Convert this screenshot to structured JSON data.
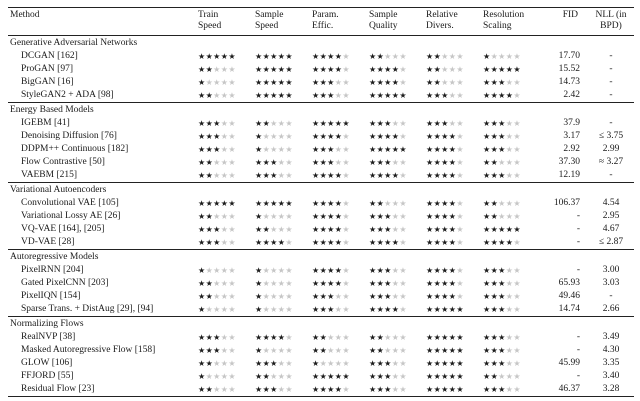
{
  "colors": {
    "star_filled": "#1c1c1c",
    "star_empty": "#c6c6c6",
    "rule": "#222222"
  },
  "rating_scale": 5,
  "header": {
    "method": "Method",
    "star_columns": [
      [
        "Train",
        "Speed"
      ],
      [
        "Sample",
        "Speed"
      ],
      [
        "Param.",
        "Effic."
      ],
      [
        "Sample",
        "Quality"
      ],
      [
        "Relative",
        "Divers."
      ],
      [
        "Resolution",
        "Scaling"
      ]
    ],
    "fid": "FID",
    "nll": [
      "NLL (in",
      "BPD)"
    ]
  },
  "sections": [
    {
      "title": "Generative Adversarial Networks",
      "rows": [
        {
          "method": "DCGAN [162]",
          "ratings": [
            5,
            5,
            4,
            2,
            2,
            1
          ],
          "fid": "17.70",
          "nll": "-"
        },
        {
          "method": "ProGAN [97]",
          "ratings": [
            2,
            5,
            4,
            4,
            2,
            5
          ],
          "fid": "15.52",
          "nll": "-"
        },
        {
          "method": "BigGAN [16]",
          "ratings": [
            1,
            5,
            3,
            4,
            2,
            3
          ],
          "fid": "14.73",
          "nll": "-"
        },
        {
          "method": "StyleGAN2 + ADA [98]",
          "ratings": [
            2,
            5,
            3,
            5,
            3,
            4
          ],
          "fid": "2.42",
          "nll": "-"
        }
      ]
    },
    {
      "title": "Energy Based Models",
      "rows": [
        {
          "method": "IGEBM [41]",
          "ratings": [
            3,
            2,
            5,
            3,
            3,
            3
          ],
          "fid": "37.9",
          "nll": "-"
        },
        {
          "method": "Denoising Diffusion [76]",
          "ratings": [
            3,
            1,
            4,
            4,
            4,
            3
          ],
          "fid": "3.17",
          "nll": "≤ 3.75"
        },
        {
          "method": "DDPM++ Continuous [182]",
          "ratings": [
            3,
            1,
            3,
            5,
            4,
            3
          ],
          "fid": "2.92",
          "nll": "2.99"
        },
        {
          "method": "Flow Contrastive [50]",
          "ratings": [
            2,
            3,
            3,
            3,
            4,
            2
          ],
          "fid": "37.30",
          "nll": "≈ 3.27"
        },
        {
          "method": "VAEBM [215]",
          "ratings": [
            2,
            3,
            4,
            4,
            4,
            3
          ],
          "fid": "12.19",
          "nll": "-"
        }
      ]
    },
    {
      "title": "Variational Autoencoders",
      "rows": [
        {
          "method": "Convolutional VAE [105]",
          "ratings": [
            5,
            5,
            4,
            2,
            4,
            2
          ],
          "fid": "106.37",
          "nll": "4.54"
        },
        {
          "method": "Variational Lossy AE [26]",
          "ratings": [
            2,
            1,
            4,
            3,
            4,
            2
          ],
          "fid": "-",
          "nll": "2.95"
        },
        {
          "method": "VQ-VAE [164], [205]",
          "ratings": [
            3,
            2,
            4,
            3,
            4,
            5
          ],
          "fid": "-",
          "nll": "4.67"
        },
        {
          "method": "VD-VAE [28]",
          "ratings": [
            3,
            4,
            4,
            4,
            4,
            4
          ],
          "fid": "-",
          "nll": "≤ 2.87"
        }
      ]
    },
    {
      "title": "Autoregressive Models",
      "rows": [
        {
          "method": "PixelRNN [204]",
          "ratings": [
            1,
            1,
            4,
            3,
            4,
            3
          ],
          "fid": "-",
          "nll": "3.00"
        },
        {
          "method": "Gated PixelCNN [203]",
          "ratings": [
            2,
            1,
            4,
            3,
            4,
            3
          ],
          "fid": "65.93",
          "nll": "3.03"
        },
        {
          "method": "PixelIQN [154]",
          "ratings": [
            2,
            1,
            3,
            3,
            4,
            3
          ],
          "fid": "49.46",
          "nll": "-"
        },
        {
          "method": "Sparse Trans. + DistAug [29], [94]",
          "ratings": [
            1,
            1,
            3,
            4,
            5,
            3
          ],
          "fid": "14.74",
          "nll": "2.66"
        }
      ]
    },
    {
      "title": "Normalizing Flows",
      "rows": [
        {
          "method": "RealNVP [38]",
          "ratings": [
            3,
            4,
            2,
            2,
            5,
            3
          ],
          "fid": "-",
          "nll": "3.49"
        },
        {
          "method": "Masked Autoregressive Flow [158]",
          "ratings": [
            3,
            1,
            2,
            2,
            5,
            3
          ],
          "fid": "-",
          "nll": "4.30"
        },
        {
          "method": "GLOW [106]",
          "ratings": [
            2,
            3,
            1,
            3,
            5,
            3
          ],
          "fid": "45.99",
          "nll": "3.35"
        },
        {
          "method": "FFJORD [55]",
          "ratings": [
            1,
            2,
            5,
            3,
            5,
            2
          ],
          "fid": "-",
          "nll": "3.40"
        },
        {
          "method": "Residual Flow [23]",
          "ratings": [
            2,
            3,
            4,
            3,
            5,
            3
          ],
          "fid": "46.37",
          "nll": "3.28"
        }
      ]
    }
  ]
}
